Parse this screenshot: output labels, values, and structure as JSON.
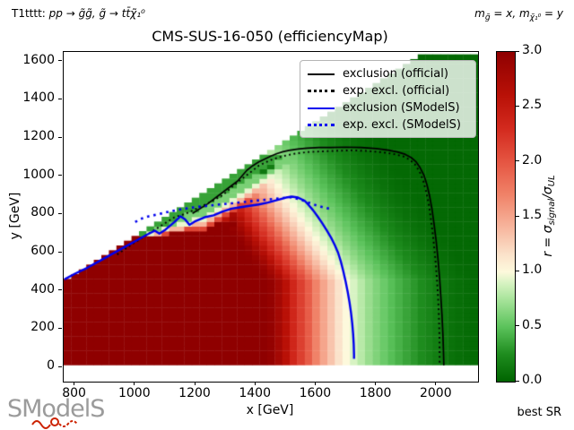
{
  "header": {
    "process_prefix": "T1tttt: ",
    "process_math": "pp → g̃g̃, g̃ → tt̄χ̃₁⁰",
    "mass_def": {
      "p1": "m",
      "sub1": "g̃",
      "p2": " = x,  m",
      "sub2": "χ̃₁⁰",
      "p3": " = y"
    },
    "title": "CMS-SUS-16-050 (efficiencyMap)"
  },
  "axes": {
    "xlabel": "x [GeV]",
    "ylabel": "y [GeV]",
    "x_ticks": [
      800,
      1000,
      1200,
      1400,
      1600,
      1800,
      2000
    ],
    "y_ticks": [
      0,
      200,
      400,
      600,
      800,
      1000,
      1200,
      1400,
      1600
    ],
    "xlim": [
      762.5,
      2137.5
    ],
    "ylim": [
      -75,
      1650
    ]
  },
  "colorbar": {
    "tick_values": [
      0,
      0.5,
      1,
      1.5,
      2,
      2.5,
      3
    ],
    "tick_labels": [
      "0.0",
      "0.5",
      "1.0",
      "1.5",
      "2.0",
      "2.5",
      "3.0"
    ],
    "label_parts": {
      "prefix": "r = σ",
      "sub1": "signal",
      "mid": "/σ",
      "sub2": "UL"
    }
  },
  "legend": {
    "entries": [
      {
        "label": "exclusion (official)",
        "color": "#000000",
        "style": "solid"
      },
      {
        "label": "exp. excl. (official)",
        "color": "#000000",
        "style": "dotted"
      },
      {
        "label": "exclusion (SModelS)",
        "color": "#0000ee",
        "style": "solid"
      },
      {
        "label": "exp. excl. (SModelS)",
        "color": "#0000ee",
        "style": "dotted"
      }
    ]
  },
  "footer": {
    "logo_text": "SModelS",
    "best_sr_label": "best SR"
  },
  "chart_data": {
    "type": "heatmap",
    "title": "CMS-SUS-16-050 (efficiencyMap)",
    "xlabel": "x [GeV]",
    "ylabel": "y [GeV]",
    "zlabel": "r = sigma_signal / sigma_UL",
    "xlim": [
      762.5,
      2137.5
    ],
    "ylim": [
      -75,
      1650
    ],
    "zlim": [
      0,
      3
    ],
    "cell_size_gev": 25,
    "x_cells": [
      775,
      2125
    ],
    "y_cell_min": 25,
    "y_cell_max": 1625,
    "kinematic_offset": 325,
    "r_bulk_profile": [
      [
        775,
        3.0
      ],
      [
        1425,
        3.0
      ],
      [
        1450,
        2.95
      ],
      [
        1475,
        2.8
      ],
      [
        1500,
        2.6
      ],
      [
        1525,
        2.35
      ],
      [
        1550,
        2.15
      ],
      [
        1575,
        1.95
      ],
      [
        1600,
        1.7
      ],
      [
        1625,
        1.5
      ],
      [
        1650,
        1.32
      ],
      [
        1675,
        1.15
      ],
      [
        1700,
        1.0
      ],
      [
        1725,
        0.9
      ],
      [
        1750,
        0.8
      ],
      [
        1775,
        0.7
      ],
      [
        1800,
        0.62
      ],
      [
        1850,
        0.48
      ],
      [
        1900,
        0.36
      ],
      [
        1950,
        0.25
      ],
      [
        2000,
        0.16
      ],
      [
        2050,
        0.09
      ],
      [
        2100,
        0.05
      ],
      [
        2137,
        0.03
      ]
    ],
    "shear": {
      "y0": 450,
      "k": 0.45
    },
    "diagonal_band": {
      "start_x": 1000,
      "ramp": 250,
      "max_y": 1100,
      "steps": [
        [
          63,
          0.35
        ],
        [
          113,
          0.6
        ],
        [
          150,
          0.95
        ],
        [
          175,
          1.4
        ],
        [
          200,
          2.1
        ]
      ]
    },
    "anomaly_cells": [
      {
        "x": 1325,
        "y": 750,
        "r": 3.0
      },
      {
        "x": 1300,
        "y": 775,
        "r": 2.6
      },
      {
        "x": 1425,
        "y": 1025,
        "r": 0.12
      },
      {
        "x": 1450,
        "y": 1050,
        "r": 0.15
      }
    ],
    "colormap_stops": [
      [
        0.0,
        "#006400"
      ],
      [
        0.25,
        "#1e8c1e"
      ],
      [
        0.5,
        "#5cc35c"
      ],
      [
        0.75,
        "#a8e49b"
      ],
      [
        0.9,
        "#d8f3c3"
      ],
      [
        1.0,
        "#fdf9dc"
      ],
      [
        1.15,
        "#fbe3cb"
      ],
      [
        1.4,
        "#f7b69e"
      ],
      [
        1.7,
        "#f08268"
      ],
      [
        2.0,
        "#e55542"
      ],
      [
        2.3,
        "#d32a1e"
      ],
      [
        2.6,
        "#b91107"
      ],
      [
        3.0,
        "#8f0000"
      ]
    ],
    "curves": [
      {
        "name": "exclusion (official)",
        "color": "#000000",
        "style": "solid",
        "width": 1.7,
        "points": [
          [
            1190,
            805
          ],
          [
            1240,
            855
          ],
          [
            1290,
            915
          ],
          [
            1340,
            975
          ],
          [
            1370,
            1030
          ],
          [
            1390,
            1055
          ],
          [
            1410,
            1075
          ],
          [
            1430,
            1090
          ],
          [
            1450,
            1105
          ],
          [
            1470,
            1118
          ],
          [
            1490,
            1128
          ],
          [
            1510,
            1135
          ],
          [
            1540,
            1142
          ],
          [
            1570,
            1147
          ],
          [
            1610,
            1150
          ],
          [
            1650,
            1150
          ],
          [
            1700,
            1152
          ],
          [
            1750,
            1150
          ],
          [
            1800,
            1144
          ],
          [
            1840,
            1136
          ],
          [
            1870,
            1127
          ],
          [
            1895,
            1115
          ],
          [
            1915,
            1098
          ],
          [
            1932,
            1075
          ],
          [
            1945,
            1045
          ],
          [
            1958,
            1005
          ],
          [
            1968,
            955
          ],
          [
            1977,
            895
          ],
          [
            1985,
            825
          ],
          [
            1992,
            745
          ],
          [
            1999,
            655
          ],
          [
            2005,
            560
          ],
          [
            2010,
            465
          ],
          [
            2014,
            370
          ],
          [
            2018,
            270
          ],
          [
            2021,
            170
          ],
          [
            2023,
            70
          ],
          [
            2024,
            10
          ]
        ]
      },
      {
        "name": "exp. excl. (official)",
        "color": "#000000",
        "style": "dotted",
        "width": 1.9,
        "points": [
          [
            940,
            590
          ],
          [
            990,
            645
          ],
          [
            1040,
            695
          ],
          [
            1090,
            745
          ],
          [
            1130,
            785
          ],
          [
            1170,
            805
          ],
          [
            1210,
            835
          ],
          [
            1250,
            865
          ],
          [
            1290,
            900
          ],
          [
            1330,
            955
          ],
          [
            1370,
            1005
          ],
          [
            1410,
            1055
          ],
          [
            1450,
            1085
          ],
          [
            1490,
            1105
          ],
          [
            1530,
            1118
          ],
          [
            1570,
            1126
          ],
          [
            1620,
            1130
          ],
          [
            1670,
            1133
          ],
          [
            1720,
            1135
          ],
          [
            1770,
            1132
          ],
          [
            1820,
            1125
          ],
          [
            1860,
            1115
          ],
          [
            1890,
            1103
          ],
          [
            1912,
            1085
          ],
          [
            1930,
            1058
          ],
          [
            1944,
            1022
          ],
          [
            1956,
            975
          ],
          [
            1966,
            915
          ],
          [
            1975,
            845
          ],
          [
            1982,
            765
          ],
          [
            1989,
            675
          ],
          [
            1995,
            580
          ],
          [
            2000,
            485
          ],
          [
            2004,
            390
          ],
          [
            2007,
            295
          ],
          [
            2009,
            195
          ],
          [
            2010,
            95
          ],
          [
            2010,
            15
          ]
        ]
      },
      {
        "name": "exclusion (SModelS)",
        "color": "#0000ee",
        "style": "solid",
        "width": 2.4,
        "points": [
          [
            765,
            460
          ],
          [
            800,
            490
          ],
          [
            840,
            520
          ],
          [
            880,
            555
          ],
          [
            920,
            590
          ],
          [
            960,
            625
          ],
          [
            1000,
            660
          ],
          [
            1040,
            695
          ],
          [
            1065,
            715
          ],
          [
            1080,
            700
          ],
          [
            1100,
            720
          ],
          [
            1130,
            760
          ],
          [
            1150,
            790
          ],
          [
            1165,
            775
          ],
          [
            1180,
            745
          ],
          [
            1200,
            765
          ],
          [
            1230,
            785
          ],
          [
            1260,
            795
          ],
          [
            1290,
            815
          ],
          [
            1320,
            830
          ],
          [
            1350,
            838
          ],
          [
            1380,
            845
          ],
          [
            1410,
            852
          ],
          [
            1440,
            862
          ],
          [
            1470,
            875
          ],
          [
            1500,
            888
          ],
          [
            1520,
            893
          ],
          [
            1540,
            888
          ],
          [
            1562,
            872
          ],
          [
            1575,
            850
          ],
          [
            1590,
            822
          ],
          [
            1605,
            790
          ],
          [
            1620,
            755
          ],
          [
            1635,
            718
          ],
          [
            1650,
            678
          ],
          [
            1662,
            640
          ],
          [
            1673,
            600
          ],
          [
            1682,
            555
          ],
          [
            1690,
            505
          ],
          [
            1698,
            450
          ],
          [
            1705,
            395
          ],
          [
            1711,
            340
          ],
          [
            1716,
            285
          ],
          [
            1720,
            230
          ],
          [
            1723,
            175
          ],
          [
            1725,
            120
          ],
          [
            1726,
            65
          ],
          [
            1726,
            45
          ]
        ]
      },
      {
        "name": "exp. excl. (SModelS)",
        "color": "#0000ee",
        "style": "dotted",
        "width": 2.6,
        "points": [
          [
            1000,
            760
          ],
          [
            1015,
            775
          ],
          [
            1045,
            790
          ],
          [
            1075,
            800
          ],
          [
            1105,
            812
          ],
          [
            1135,
            822
          ],
          [
            1165,
            830
          ],
          [
            1200,
            838
          ],
          [
            1240,
            845
          ],
          [
            1280,
            852
          ],
          [
            1320,
            858
          ],
          [
            1360,
            865
          ],
          [
            1400,
            872
          ],
          [
            1440,
            878
          ],
          [
            1480,
            884
          ],
          [
            1515,
            890
          ],
          [
            1545,
            880
          ],
          [
            1575,
            862
          ],
          [
            1605,
            845
          ],
          [
            1635,
            833
          ],
          [
            1655,
            826
          ]
        ]
      }
    ]
  }
}
